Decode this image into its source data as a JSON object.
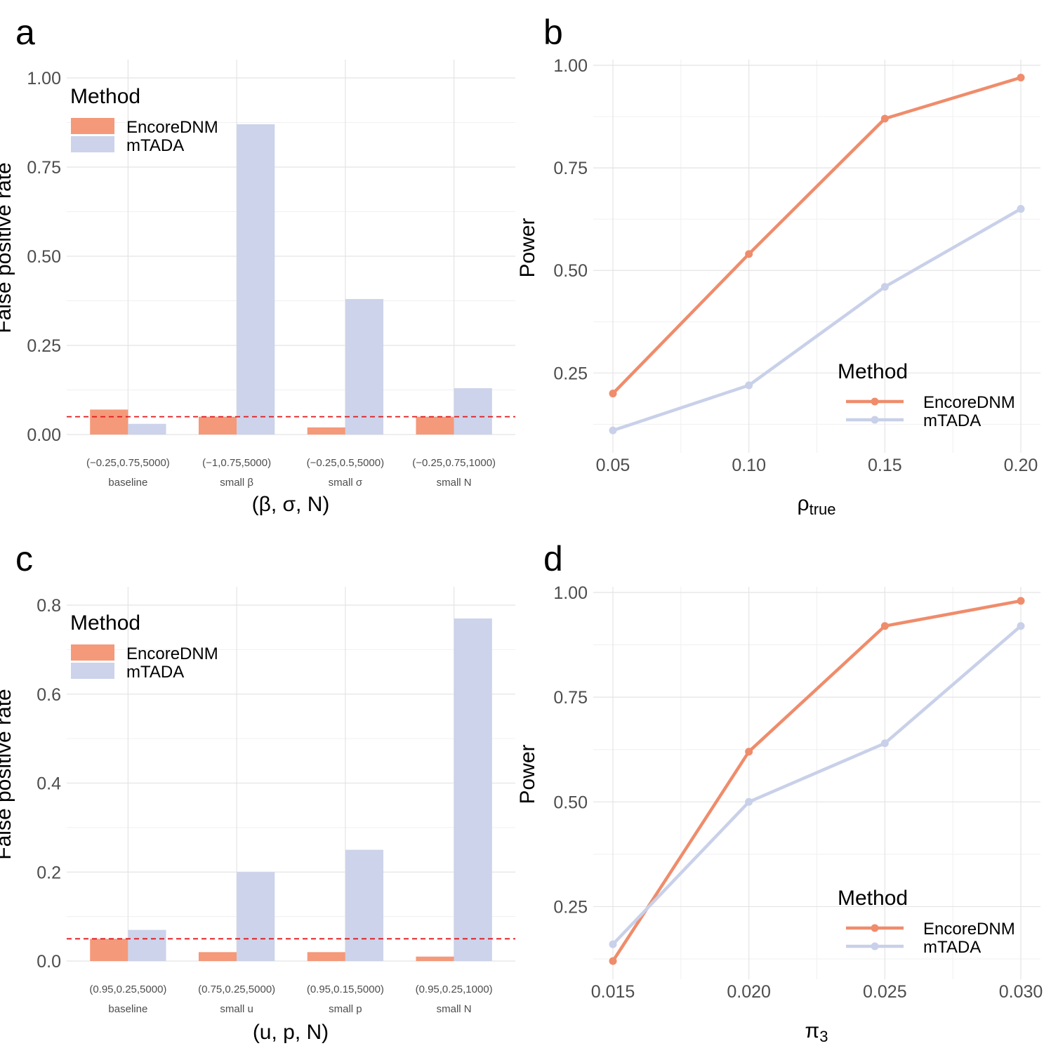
{
  "colors": {
    "encore": "#f4997a",
    "mtada": "#ccd3ea",
    "encore_line": "#ef8c6b",
    "mtada_line": "#c9d0e9",
    "ref_line": "#e0181b"
  },
  "legend": {
    "title": "Method",
    "items": [
      "EncoreDNM",
      "mTADA"
    ]
  },
  "chart_data": [
    {
      "panel": "a",
      "type": "bar",
      "ylabel": "False positive rate",
      "xlabel": "(β, σ, N)",
      "ylim": [
        0,
        1.0
      ],
      "yticks": [
        "0.00",
        "0.25",
        "0.50",
        "0.75",
        "1.00"
      ],
      "yticks_values": [
        0,
        0.25,
        0.5,
        0.75,
        1.0
      ],
      "reference_line": 0.05,
      "categories": [
        {
          "params": "(−0.25,0.75,5000)",
          "name": "baseline"
        },
        {
          "params": "(−1,0.75,5000)",
          "name": "small β"
        },
        {
          "params": "(−0.25,0.5,5000)",
          "name": "small σ"
        },
        {
          "params": "(−0.25,0.75,1000)",
          "name": "small N"
        }
      ],
      "series": [
        {
          "name": "EncoreDNM",
          "values": [
            0.07,
            0.05,
            0.02,
            0.05
          ]
        },
        {
          "name": "mTADA",
          "values": [
            0.03,
            0.87,
            0.38,
            0.13
          ]
        }
      ],
      "legend_position": "top-left"
    },
    {
      "panel": "b",
      "type": "line",
      "ylabel": "Power",
      "xlabel": "ρ",
      "xlabel_sub": "true",
      "x": [
        0.05,
        0.1,
        0.15,
        0.2
      ],
      "xticks": [
        "0.05",
        "0.10",
        "0.15",
        "0.20"
      ],
      "ylim": [
        0.1,
        1.0
      ],
      "yticks": [
        "0.25",
        "0.50",
        "0.75",
        "1.00"
      ],
      "yticks_values": [
        0.25,
        0.5,
        0.75,
        1.0
      ],
      "series": [
        {
          "name": "EncoreDNM",
          "values": [
            0.2,
            0.54,
            0.87,
            0.97
          ]
        },
        {
          "name": "mTADA",
          "values": [
            0.11,
            0.22,
            0.46,
            0.65
          ]
        }
      ],
      "legend_position": "bottom-right"
    },
    {
      "panel": "c",
      "type": "bar",
      "ylabel": "False positive rate",
      "xlabel": "(u, p, N)",
      "ylim": [
        0,
        0.8
      ],
      "yticks": [
        "0.0",
        "0.2",
        "0.4",
        "0.6",
        "0.8"
      ],
      "yticks_values": [
        0,
        0.2,
        0.4,
        0.6,
        0.8
      ],
      "reference_line": 0.05,
      "categories": [
        {
          "params": "(0.95,0.25,5000)",
          "name": "baseline"
        },
        {
          "params": "(0.75,0.25,5000)",
          "name": "small u"
        },
        {
          "params": "(0.95,0.15,5000)",
          "name": "small p"
        },
        {
          "params": "(0.95,0.25,1000)",
          "name": "small N"
        }
      ],
      "series": [
        {
          "name": "EncoreDNM",
          "values": [
            0.05,
            0.02,
            0.02,
            0.01
          ]
        },
        {
          "name": "mTADA",
          "values": [
            0.07,
            0.2,
            0.25,
            0.77
          ]
        }
      ],
      "legend_position": "top-left"
    },
    {
      "panel": "d",
      "type": "line",
      "ylabel": "Power",
      "xlabel": "π",
      "xlabel_sub": "3",
      "x": [
        0.015,
        0.02,
        0.025,
        0.03
      ],
      "xticks": [
        "0.015",
        "0.020",
        "0.025",
        "0.030"
      ],
      "ylim": [
        0.12,
        1.0
      ],
      "yticks": [
        "0.25",
        "0.50",
        "0.75",
        "1.00"
      ],
      "yticks_values": [
        0.25,
        0.5,
        0.75,
        1.0
      ],
      "series": [
        {
          "name": "EncoreDNM",
          "values": [
            0.12,
            0.62,
            0.92,
            0.98
          ]
        },
        {
          "name": "mTADA",
          "values": [
            0.16,
            0.5,
            0.64,
            0.92
          ]
        }
      ],
      "legend_position": "bottom-right"
    }
  ]
}
